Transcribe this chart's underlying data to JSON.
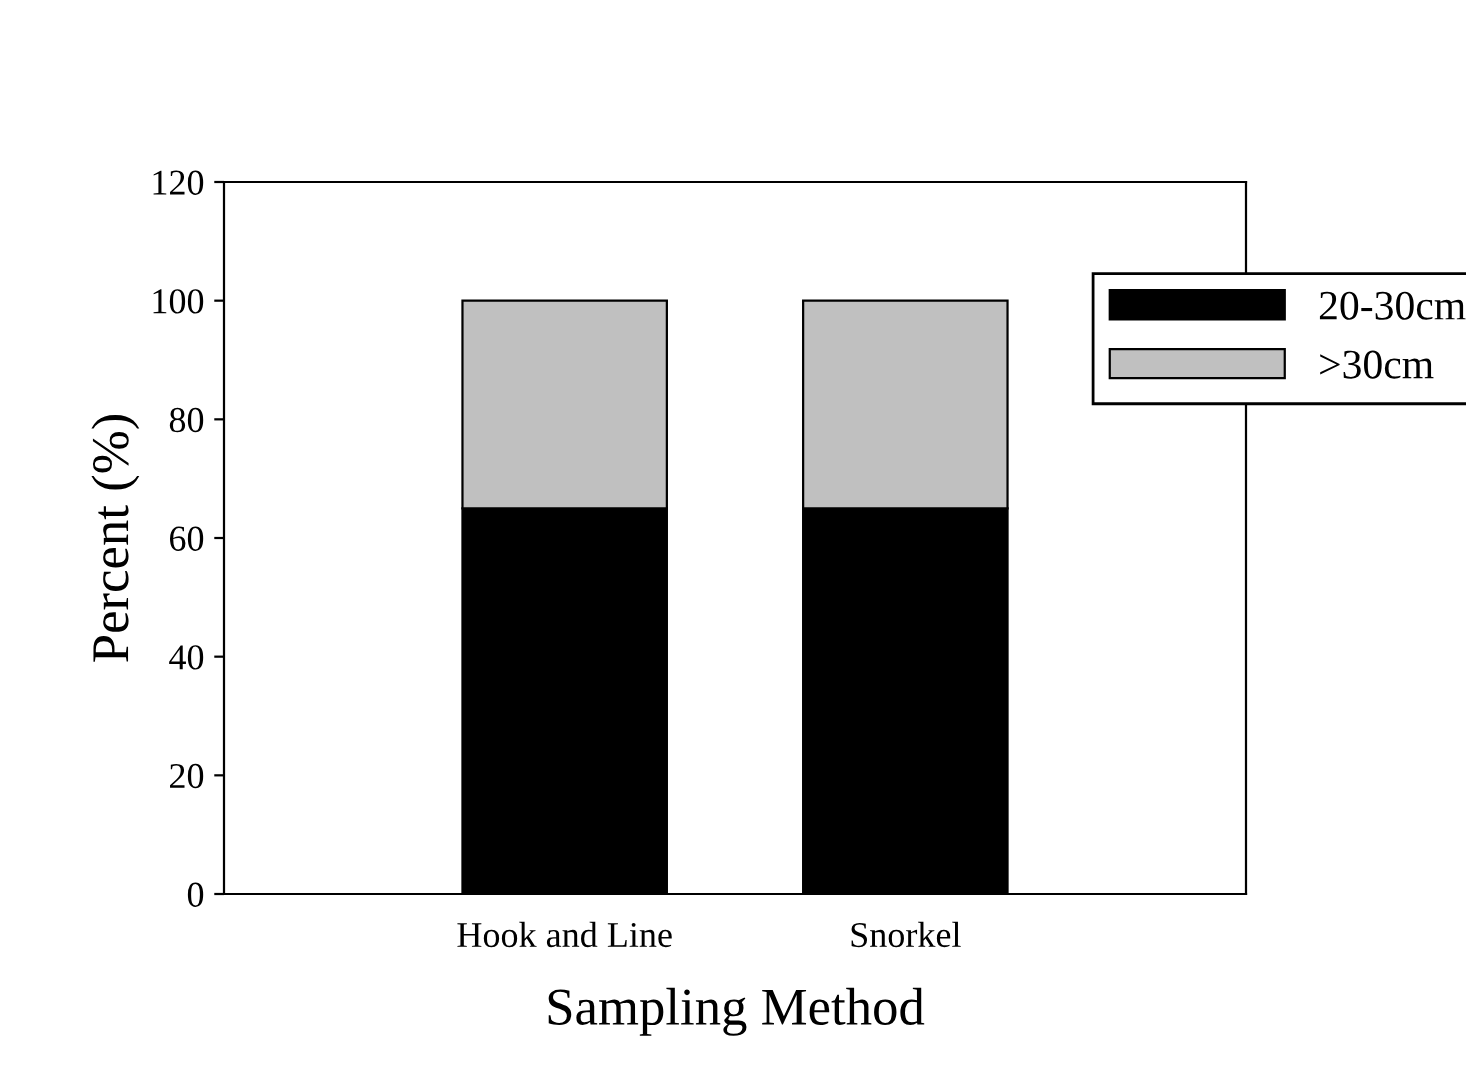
{
  "chart_data": {
    "type": "bar",
    "stacked": true,
    "xlabel": "Sampling Method",
    "ylabel": "Percent (%)",
    "categories": [
      "Hook and Line",
      "Snorkel"
    ],
    "series": [
      {
        "name": "20-30cm",
        "color": "#000000",
        "values": [
          65,
          65
        ]
      },
      {
        "name": ">30cm",
        "color": "#c0c0c0",
        "values": [
          35,
          35
        ]
      }
    ],
    "ylim": [
      0,
      120
    ],
    "yticks": [
      0,
      20,
      40,
      60,
      80,
      100,
      120
    ],
    "legend": "right",
    "grid": false
  }
}
